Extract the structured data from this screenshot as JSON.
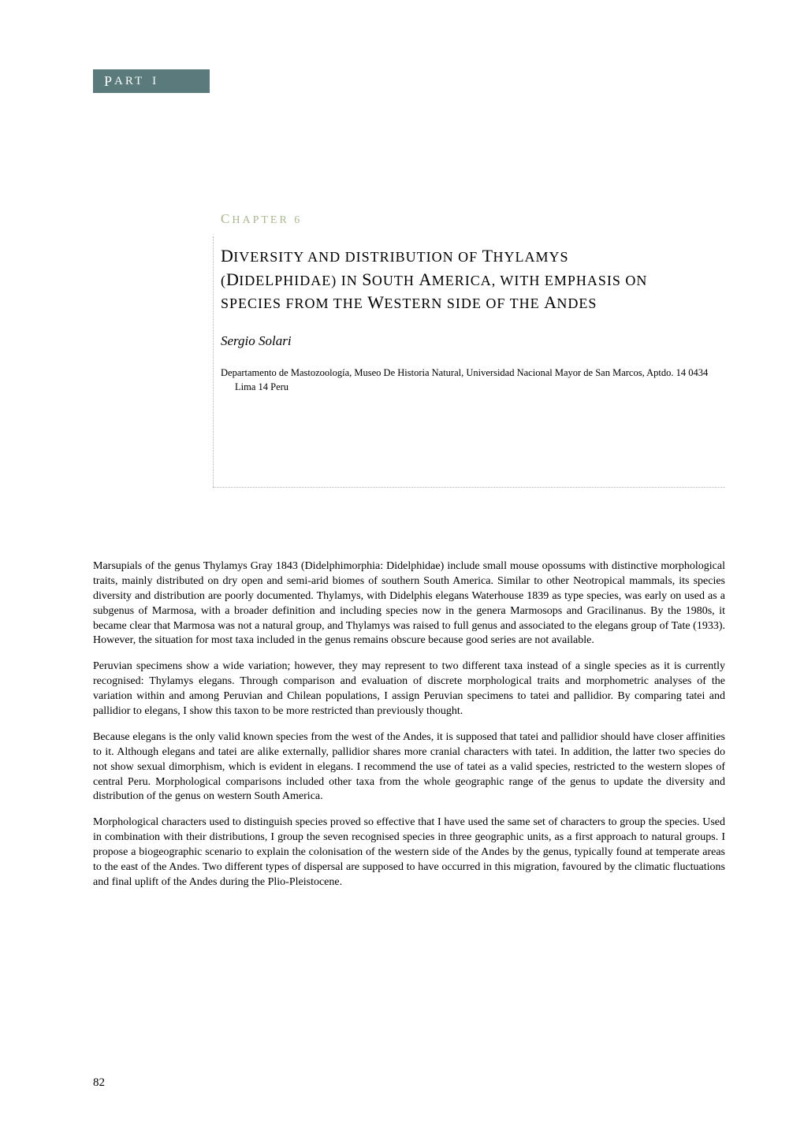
{
  "part": {
    "label_caps": "P",
    "label_rest": "ART",
    "number": "I"
  },
  "chapter": {
    "label_caps": "C",
    "label_rest": "HAPTER",
    "number": "6"
  },
  "title": {
    "line1_cap": "D",
    "line1_rest": "IVERSITY AND DISTRIBUTION OF ",
    "line1_genus_cap": "T",
    "line1_genus_rest": "HYLAMYS",
    "line2a": "(",
    "line2_cap1": "D",
    "line2_rest1": "IDELPHIDAE) IN ",
    "line2_cap2": "S",
    "line2_rest2": "OUTH ",
    "line2_cap3": "A",
    "line2_rest3": "MERICA, WITH EMPHASIS ON",
    "line3_rest1": "SPECIES FROM THE ",
    "line3_cap1": "W",
    "line3_rest2": "ESTERN SIDE OF THE ",
    "line3_cap2": "A",
    "line3_rest3": "NDES"
  },
  "author": "Sergio Solari",
  "affiliation": "Departamento de Mastozoología, Museo De Historia Natural, Universidad Nacional Mayor de San Marcos, Aptdo. 14 0434 Lima 14 Peru",
  "paragraphs": [
    "Marsupials of the genus Thylamys Gray 1843 (Didelphimorphia: Didelphidae) include small mouse opossums with distinctive morphological traits, mainly distributed on dry open and semi-arid biomes of southern South America. Similar to other Neotropical mammals, its species diversity and distribution are poorly documented. Thylamys, with Didelphis elegans Waterhouse 1839 as type species, was early on used as a subgenus of Marmosa, with a broader definition and including species now in the genera Marmosops and Gracilinanus. By the 1980s, it became clear that Marmosa was not a natural group, and Thylamys was raised to full genus and associated to the elegans group of Tate (1933). However, the situation for most taxa included in the genus remains obscure because good series are not available.",
    "Peruvian specimens show a wide variation; however, they may represent to two different taxa instead of a single species as it is currently recognised: Thylamys elegans. Through comparison and evaluation of discrete morphological traits and morphometric analyses of the variation within and among Peruvian and Chilean populations, I assign Peruvian specimens to tatei and pallidior. By comparing tatei and pallidior to elegans, I show this taxon to be more restricted than previously thought.",
    "Because elegans is the only valid known species from the west of the Andes, it is supposed that tatei and pallidior should have closer affinities to it. Although elegans and tatei are alike externally, pallidior shares more cranial characters with tatei. In addition, the latter two species do not show sexual dimorphism, which is evident in elegans. I recommend the use of tatei as a valid species, restricted to the western slopes of central Peru. Morphological comparisons included other taxa from the whole geographic range of the genus to update the diversity and distribution of the genus on western South America.",
    "Morphological characters used to distinguish species proved so effective that I have used the same set of characters to group the species. Used in combination with their distributions, I group the seven recognised species in three geographic units, as a first approach to natural groups. I propose a biogeographic scenario to explain the colonisation of the western side of the Andes by the genus, typically found at temperate areas to the east of the Andes. Two different types of dispersal are supposed to have occurred in this migration, favoured by the climatic fluctuations and final uplift of the Andes during the Plio-Pleistocene."
  ],
  "page_number": "82",
  "colors": {
    "part_banner_bg": "#5a7a7c",
    "part_banner_text": "#ffffff",
    "chapter_label": "#a9b98e",
    "dotted_rule": "#b3b3b3",
    "body_text": "#000000",
    "background": "#ffffff"
  }
}
